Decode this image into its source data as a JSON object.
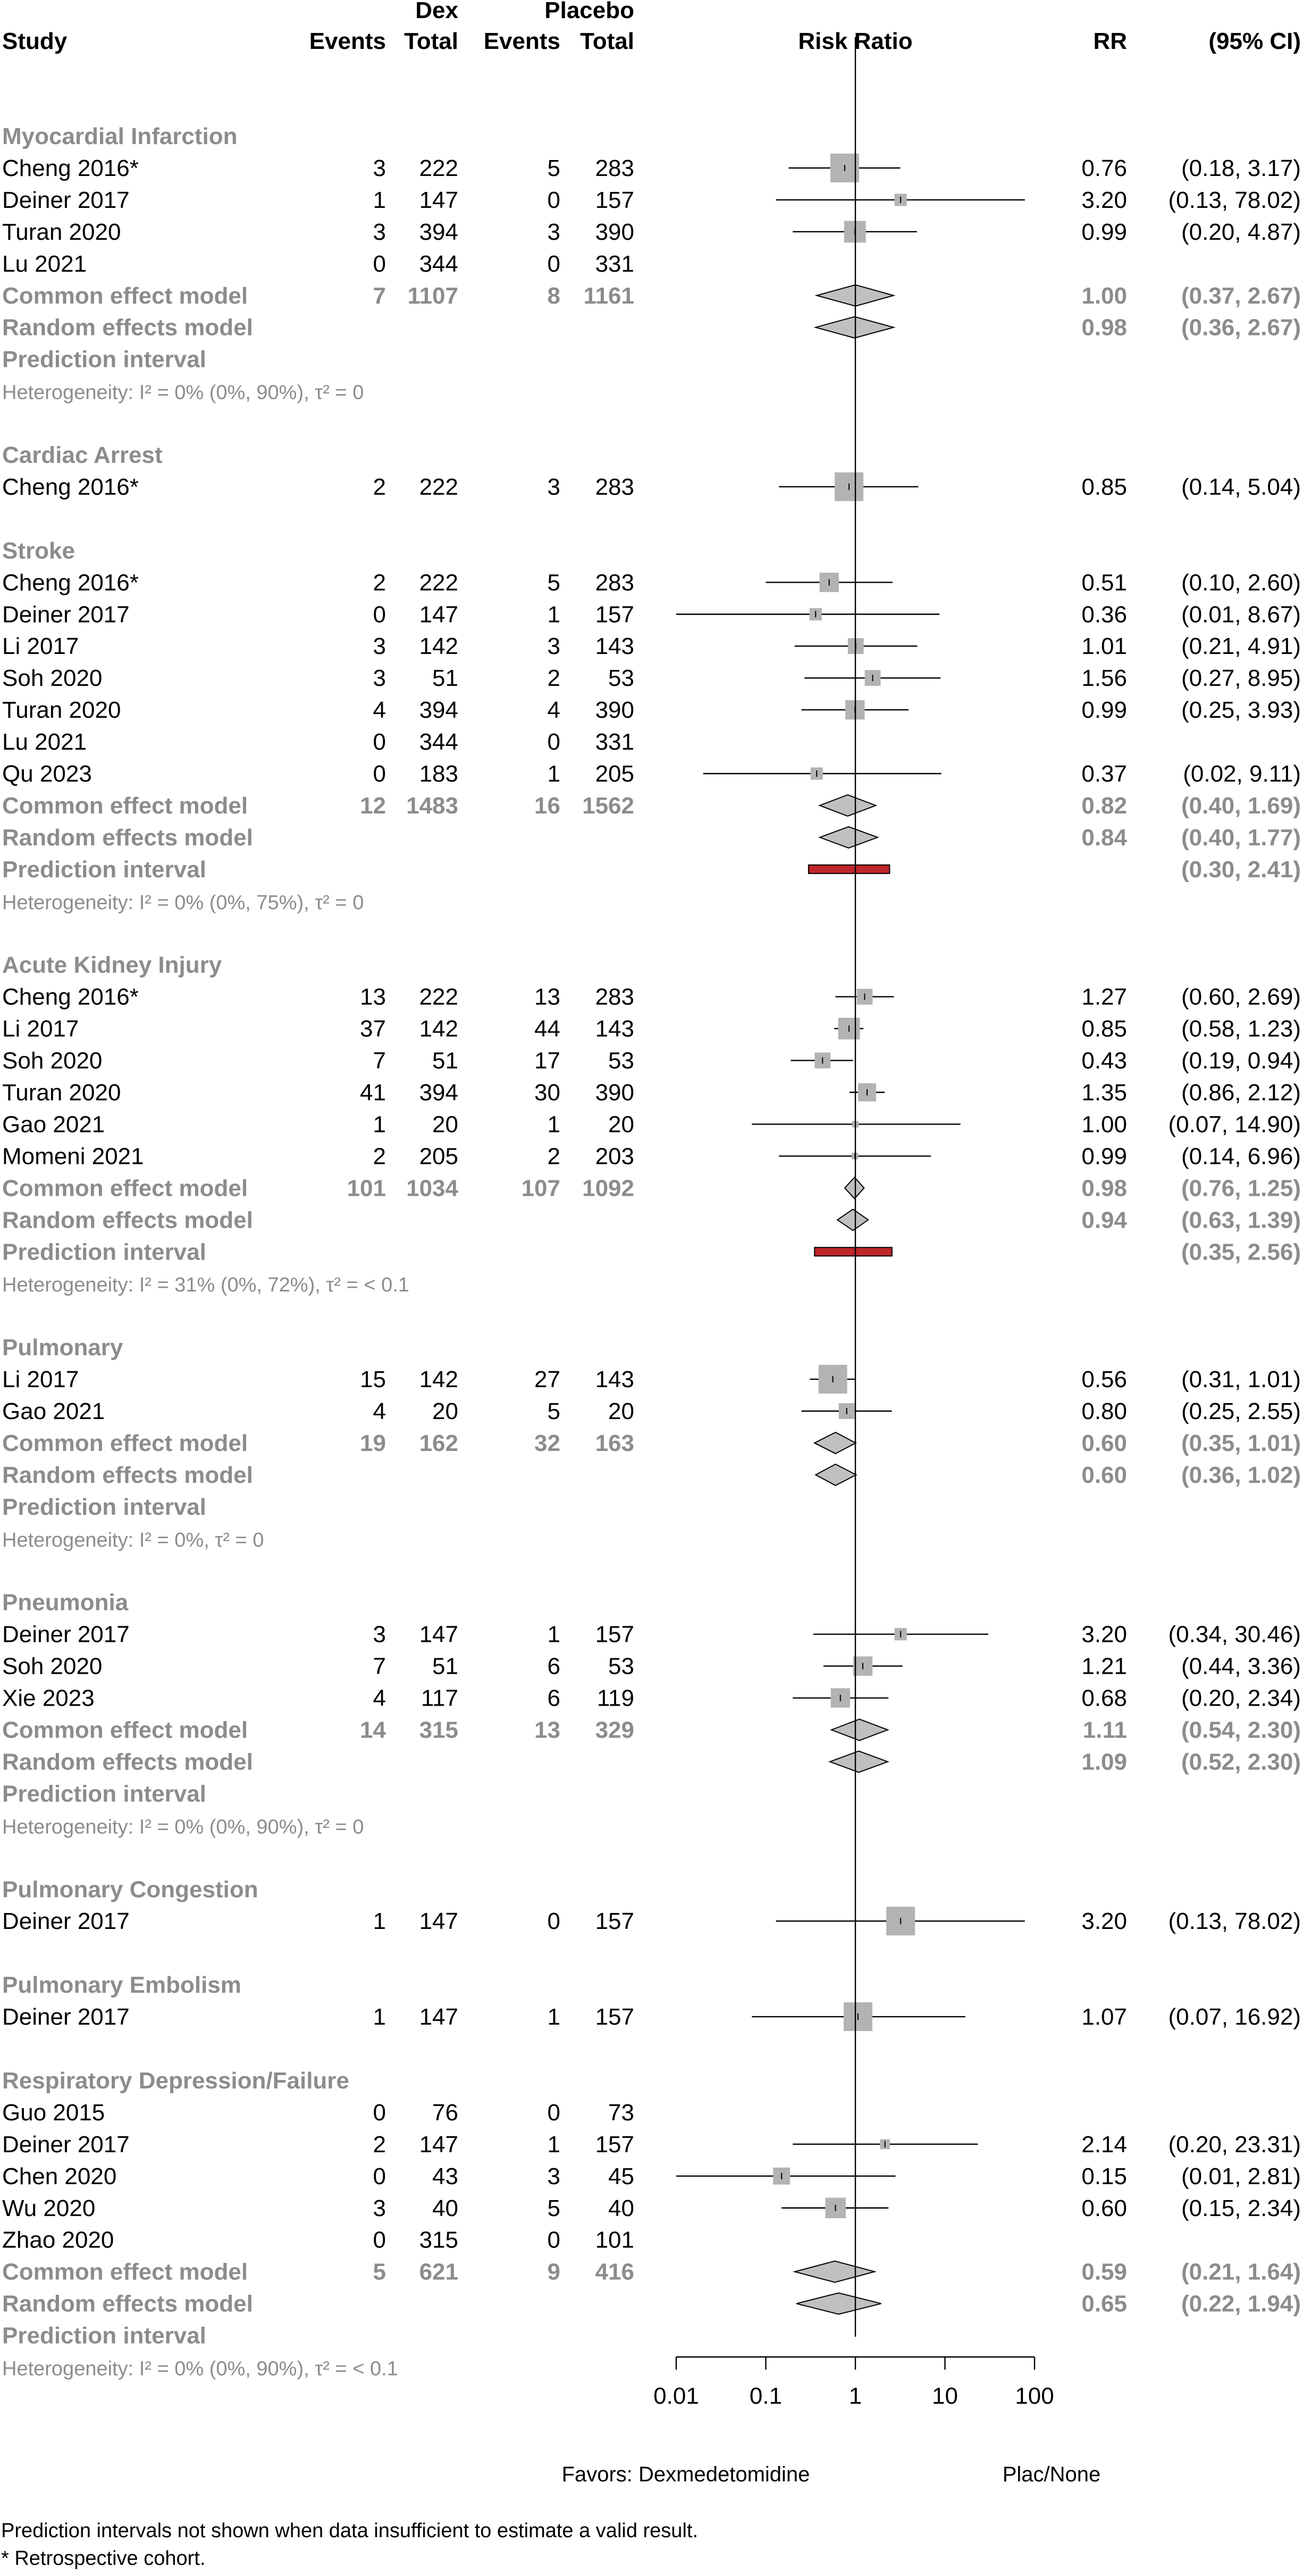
{
  "header": {
    "study": "Study",
    "dex_label": "Dex",
    "placebo_label": "Placebo",
    "events": "Events",
    "total": "Total",
    "risk_ratio": "Risk Ratio",
    "rr": "RR",
    "ci": "(95% CI)"
  },
  "chart_data": {
    "type": "forest",
    "scale": "log",
    "xlim": [
      0.01,
      100
    ],
    "ticks": [
      "0.01",
      "0.1",
      "1",
      "10",
      "100"
    ],
    "tick_values": [
      0.01,
      0.1,
      1,
      10,
      100
    ],
    "favors_left": "Favors: Dexmedetomidine",
    "favors_right": "Plac/None",
    "rows": [
      {
        "kind": "group",
        "label": "Myocardial Infarction"
      },
      {
        "kind": "study",
        "label": "Cheng 2016*",
        "e1": "3",
        "n1": "222",
        "e2": "5",
        "n2": "283",
        "rr": 0.76,
        "lo": 0.18,
        "hi": 3.17,
        "w": 1.0,
        "rr_text": "0.76",
        "ci_text": "(0.18,  3.17)"
      },
      {
        "kind": "study",
        "label": "Deiner 2017",
        "e1": "1",
        "n1": "147",
        "e2": "0",
        "n2": "157",
        "rr": 3.2,
        "lo": 0.13,
        "hi": 78.02,
        "w": 0.3,
        "rr_text": "3.20",
        "ci_text": "(0.13, 78.02)"
      },
      {
        "kind": "study",
        "label": "Turan 2020",
        "e1": "3",
        "n1": "394",
        "e2": "3",
        "n2": "390",
        "rr": 0.99,
        "lo": 0.2,
        "hi": 4.87,
        "w": 0.7,
        "rr_text": "0.99",
        "ci_text": "(0.20,  4.87)"
      },
      {
        "kind": "study",
        "label": "Lu 2021",
        "e1": "0",
        "n1": "344",
        "e2": "0",
        "n2": "331",
        "rr": null,
        "lo": null,
        "hi": null,
        "w": 0,
        "rr_text": "",
        "ci_text": ""
      },
      {
        "kind": "common",
        "label": "Common effect model",
        "e1": "7",
        "n1": "1107",
        "e2": "8",
        "n2": "1161",
        "rr": 1.0,
        "lo": 0.37,
        "hi": 2.67,
        "rr_text": "1.00",
        "ci_text": "(0.37,  2.67)"
      },
      {
        "kind": "random",
        "label": "Random effects model",
        "rr": 0.98,
        "lo": 0.36,
        "hi": 2.67,
        "rr_text": "0.98",
        "ci_text": "(0.36,  2.67)"
      },
      {
        "kind": "pred",
        "label": "Prediction interval",
        "lo": null,
        "hi": null,
        "ci_text": ""
      },
      {
        "kind": "het",
        "label": "Heterogeneity: I² = 0% (0%, 90%), τ² = 0"
      },
      {
        "kind": "blank"
      },
      {
        "kind": "group",
        "label": "Cardiac Arrest"
      },
      {
        "kind": "study",
        "label": "Cheng 2016*",
        "e1": "2",
        "n1": "222",
        "e2": "3",
        "n2": "283",
        "rr": 0.85,
        "lo": 0.14,
        "hi": 5.04,
        "w": 1.0,
        "rr_text": "0.85",
        "ci_text": "(0.14,  5.04)"
      },
      {
        "kind": "blank"
      },
      {
        "kind": "group",
        "label": "Stroke"
      },
      {
        "kind": "study",
        "label": "Cheng 2016*",
        "e1": "2",
        "n1": "222",
        "e2": "5",
        "n2": "283",
        "rr": 0.51,
        "lo": 0.1,
        "hi": 2.6,
        "w": 0.6,
        "rr_text": "0.51",
        "ci_text": "(0.10,  2.60)"
      },
      {
        "kind": "study",
        "label": "Deiner 2017",
        "e1": "0",
        "n1": "147",
        "e2": "1",
        "n2": "157",
        "rr": 0.36,
        "lo": 0.01,
        "hi": 8.67,
        "w": 0.3,
        "rr_text": "0.36",
        "ci_text": "(0.01,  8.67)"
      },
      {
        "kind": "study",
        "label": "Li 2017",
        "e1": "3",
        "n1": "142",
        "e2": "3",
        "n2": "143",
        "rr": 1.01,
        "lo": 0.21,
        "hi": 4.91,
        "w": 0.45,
        "rr_text": "1.01",
        "ci_text": "(0.21,  4.91)"
      },
      {
        "kind": "study",
        "label": "Soh 2020",
        "e1": "3",
        "n1": "51",
        "e2": "2",
        "n2": "53",
        "rr": 1.56,
        "lo": 0.27,
        "hi": 8.95,
        "w": 0.45,
        "rr_text": "1.56",
        "ci_text": "(0.27,  8.95)"
      },
      {
        "kind": "study",
        "label": "Turan 2020",
        "e1": "4",
        "n1": "394",
        "e2": "4",
        "n2": "390",
        "rr": 0.99,
        "lo": 0.25,
        "hi": 3.93,
        "w": 0.6,
        "rr_text": "0.99",
        "ci_text": "(0.25,  3.93)"
      },
      {
        "kind": "study",
        "label": "Lu 2021",
        "e1": "0",
        "n1": "344",
        "e2": "0",
        "n2": "331",
        "rr": null,
        "lo": null,
        "hi": null,
        "w": 0,
        "rr_text": "",
        "ci_text": ""
      },
      {
        "kind": "study",
        "label": "Qu 2023",
        "e1": "0",
        "n1": "183",
        "e2": "1",
        "n2": "205",
        "rr": 0.37,
        "lo": 0.02,
        "hi": 9.11,
        "w": 0.3,
        "rr_text": "0.37",
        "ci_text": "(0.02,  9.11)"
      },
      {
        "kind": "common",
        "label": "Common effect model",
        "e1": "12",
        "n1": "1483",
        "e2": "16",
        "n2": "1562",
        "rr": 0.82,
        "lo": 0.4,
        "hi": 1.69,
        "rr_text": "0.82",
        "ci_text": "(0.40,  1.69)"
      },
      {
        "kind": "random",
        "label": "Random effects model",
        "rr": 0.84,
        "lo": 0.4,
        "hi": 1.77,
        "rr_text": "0.84",
        "ci_text": "(0.40,  1.77)"
      },
      {
        "kind": "pred",
        "label": "Prediction interval",
        "lo": 0.3,
        "hi": 2.41,
        "ci_text": "(0.30,  2.41)"
      },
      {
        "kind": "het",
        "label": "Heterogeneity: I² = 0% (0%, 75%), τ² = 0"
      },
      {
        "kind": "blank"
      },
      {
        "kind": "group",
        "label": "Acute Kidney Injury"
      },
      {
        "kind": "study",
        "label": "Cheng 2016*",
        "e1": "13",
        "n1": "222",
        "e2": "13",
        "n2": "283",
        "rr": 1.27,
        "lo": 0.6,
        "hi": 2.69,
        "w": 0.45,
        "rr_text": "1.27",
        "ci_text": "(0.60,  2.69)"
      },
      {
        "kind": "study",
        "label": "Li 2017",
        "e1": "37",
        "n1": "142",
        "e2": "44",
        "n2": "143",
        "rr": 0.85,
        "lo": 0.58,
        "hi": 1.23,
        "w": 0.7,
        "rr_text": "0.85",
        "ci_text": "(0.58,  1.23)"
      },
      {
        "kind": "study",
        "label": "Soh 2020",
        "e1": "7",
        "n1": "51",
        "e2": "17",
        "n2": "53",
        "rr": 0.43,
        "lo": 0.19,
        "hi": 0.94,
        "w": 0.45,
        "rr_text": "0.43",
        "ci_text": "(0.19,  0.94)"
      },
      {
        "kind": "study",
        "label": "Turan 2020",
        "e1": "41",
        "n1": "394",
        "e2": "30",
        "n2": "390",
        "rr": 1.35,
        "lo": 0.86,
        "hi": 2.12,
        "w": 0.55,
        "rr_text": "1.35",
        "ci_text": "(0.86,  2.12)"
      },
      {
        "kind": "study",
        "label": "Gao 2021",
        "e1": "1",
        "n1": "20",
        "e2": "1",
        "n2": "20",
        "rr": 1.0,
        "lo": 0.07,
        "hi": 14.9,
        "w": 0.05,
        "rr_text": "1.00",
        "ci_text": "(0.07, 14.90)"
      },
      {
        "kind": "study",
        "label": "Momeni 2021",
        "e1": "2",
        "n1": "205",
        "e2": "2",
        "n2": "203",
        "rr": 0.99,
        "lo": 0.14,
        "hi": 6.96,
        "w": 0.05,
        "rr_text": "0.99",
        "ci_text": "(0.14,  6.96)"
      },
      {
        "kind": "common",
        "label": "Common effect model",
        "e1": "101",
        "n1": "1034",
        "e2": "107",
        "n2": "1092",
        "rr": 0.98,
        "lo": 0.76,
        "hi": 1.25,
        "rr_text": "0.98",
        "ci_text": "(0.76,  1.25)"
      },
      {
        "kind": "random",
        "label": "Random effects model",
        "rr": 0.94,
        "lo": 0.63,
        "hi": 1.39,
        "rr_text": "0.94",
        "ci_text": "(0.63,  1.39)"
      },
      {
        "kind": "pred",
        "label": "Prediction interval",
        "lo": 0.35,
        "hi": 2.56,
        "ci_text": "(0.35,  2.56)"
      },
      {
        "kind": "het",
        "label": "Heterogeneity: I² = 31% (0%, 72%), τ² = < 0.1"
      },
      {
        "kind": "blank"
      },
      {
        "kind": "group",
        "label": "Pulmonary"
      },
      {
        "kind": "study",
        "label": "Li 2017",
        "e1": "15",
        "n1": "142",
        "e2": "27",
        "n2": "143",
        "rr": 0.56,
        "lo": 0.31,
        "hi": 1.01,
        "w": 1.0,
        "rr_text": "0.56",
        "ci_text": "(0.31,  1.01)"
      },
      {
        "kind": "study",
        "label": "Gao 2021",
        "e1": "4",
        "n1": "20",
        "e2": "5",
        "n2": "20",
        "rr": 0.8,
        "lo": 0.25,
        "hi": 2.55,
        "w": 0.45,
        "rr_text": "0.80",
        "ci_text": "(0.25,  2.55)"
      },
      {
        "kind": "common",
        "label": "Common effect model",
        "e1": "19",
        "n1": "162",
        "e2": "32",
        "n2": "163",
        "rr": 0.6,
        "lo": 0.35,
        "hi": 1.01,
        "rr_text": "0.60",
        "ci_text": "(0.35,  1.01)"
      },
      {
        "kind": "random",
        "label": "Random effects model",
        "rr": 0.6,
        "lo": 0.36,
        "hi": 1.02,
        "rr_text": "0.60",
        "ci_text": "(0.36,  1.02)"
      },
      {
        "kind": "pred",
        "label": "Prediction interval",
        "lo": null,
        "hi": null,
        "ci_text": ""
      },
      {
        "kind": "het",
        "label": "Heterogeneity: I² = 0%, τ² = 0"
      },
      {
        "kind": "blank"
      },
      {
        "kind": "group",
        "label": "Pneumonia"
      },
      {
        "kind": "study",
        "label": "Deiner 2017",
        "e1": "3",
        "n1": "147",
        "e2": "1",
        "n2": "157",
        "rr": 3.2,
        "lo": 0.34,
        "hi": 30.46,
        "w": 0.3,
        "rr_text": "3.20",
        "ci_text": "(0.34, 30.46)"
      },
      {
        "kind": "study",
        "label": "Soh 2020",
        "e1": "7",
        "n1": "51",
        "e2": "6",
        "n2": "53",
        "rr": 1.21,
        "lo": 0.44,
        "hi": 3.36,
        "w": 0.6,
        "rr_text": "1.21",
        "ci_text": "(0.44,  3.36)"
      },
      {
        "kind": "study",
        "label": "Xie 2023",
        "e1": "4",
        "n1": "117",
        "e2": "6",
        "n2": "119",
        "rr": 0.68,
        "lo": 0.2,
        "hi": 2.34,
        "w": 0.6,
        "rr_text": "0.68",
        "ci_text": "(0.20,  2.34)"
      },
      {
        "kind": "common",
        "label": "Common effect model",
        "e1": "14",
        "n1": "315",
        "e2": "13",
        "n2": "329",
        "rr": 1.11,
        "lo": 0.54,
        "hi": 2.3,
        "rr_text": "1.11",
        "ci_text": "(0.54,  2.30)"
      },
      {
        "kind": "random",
        "label": "Random effects model",
        "rr": 1.09,
        "lo": 0.52,
        "hi": 2.3,
        "rr_text": "1.09",
        "ci_text": "(0.52,  2.30)"
      },
      {
        "kind": "pred",
        "label": "Prediction interval",
        "lo": null,
        "hi": null,
        "ci_text": ""
      },
      {
        "kind": "het",
        "label": "Heterogeneity: I² = 0% (0%, 90%), τ² = 0"
      },
      {
        "kind": "blank"
      },
      {
        "kind": "group",
        "label": "Pulmonary Congestion"
      },
      {
        "kind": "study",
        "label": "Deiner 2017",
        "e1": "1",
        "n1": "147",
        "e2": "0",
        "n2": "157",
        "rr": 3.2,
        "lo": 0.13,
        "hi": 78.02,
        "w": 1.0,
        "rr_text": "3.20",
        "ci_text": "(0.13, 78.02)"
      },
      {
        "kind": "blank"
      },
      {
        "kind": "group",
        "label": "Pulmonary Embolism"
      },
      {
        "kind": "study",
        "label": "Deiner 2017",
        "e1": "1",
        "n1": "147",
        "e2": "1",
        "n2": "157",
        "rr": 1.07,
        "lo": 0.07,
        "hi": 16.92,
        "w": 1.0,
        "rr_text": "1.07",
        "ci_text": "(0.07, 16.92)"
      },
      {
        "kind": "blank"
      },
      {
        "kind": "group",
        "label": "Respiratory Depression/Failure"
      },
      {
        "kind": "study",
        "label": "Guo 2015",
        "e1": "0",
        "n1": "76",
        "e2": "0",
        "n2": "73",
        "rr": null,
        "lo": null,
        "hi": null,
        "w": 0,
        "rr_text": "",
        "ci_text": ""
      },
      {
        "kind": "study",
        "label": "Deiner 2017",
        "e1": "2",
        "n1": "147",
        "e2": "1",
        "n2": "157",
        "rr": 2.14,
        "lo": 0.2,
        "hi": 23.31,
        "w": 0.2,
        "rr_text": "2.14",
        "ci_text": "(0.20, 23.31)"
      },
      {
        "kind": "study",
        "label": "Chen 2020",
        "e1": "0",
        "n1": "43",
        "e2": "3",
        "n2": "45",
        "rr": 0.15,
        "lo": 0.01,
        "hi": 2.81,
        "w": 0.5,
        "rr_text": "0.15",
        "ci_text": "(0.01,  2.81)"
      },
      {
        "kind": "study",
        "label": "Wu 2020",
        "e1": "3",
        "n1": "40",
        "e2": "5",
        "n2": "40",
        "rr": 0.6,
        "lo": 0.15,
        "hi": 2.34,
        "w": 0.65,
        "rr_text": "0.60",
        "ci_text": "(0.15,  2.34)"
      },
      {
        "kind": "study",
        "label": "Zhao 2020",
        "e1": "0",
        "n1": "315",
        "e2": "0",
        "n2": "101",
        "rr": null,
        "lo": null,
        "hi": null,
        "w": 0,
        "rr_text": "",
        "ci_text": ""
      },
      {
        "kind": "common",
        "label": "Common effect model",
        "e1": "5",
        "n1": "621",
        "e2": "9",
        "n2": "416",
        "rr": 0.59,
        "lo": 0.21,
        "hi": 1.64,
        "rr_text": "0.59",
        "ci_text": "(0.21,  1.64)"
      },
      {
        "kind": "random",
        "label": "Random effects model",
        "rr": 0.65,
        "lo": 0.22,
        "hi": 1.94,
        "rr_text": "0.65",
        "ci_text": "(0.22,  1.94)"
      },
      {
        "kind": "pred",
        "label": "Prediction interval",
        "lo": null,
        "hi": null,
        "ci_text": ""
      },
      {
        "kind": "het",
        "label": "Heterogeneity: I² = 0% (0%, 90%), τ² = < 0.1"
      }
    ]
  },
  "footnotes": [
    "Prediction intervals not shown when data insufficient to estimate a valid result.",
    "* Retrospective cohort."
  ],
  "colors": {
    "text": "#000000",
    "muted": "#8c8c8c",
    "box": "#b3b3b3",
    "diamond": "#c0c0c0",
    "prediction": "#c0262b"
  }
}
